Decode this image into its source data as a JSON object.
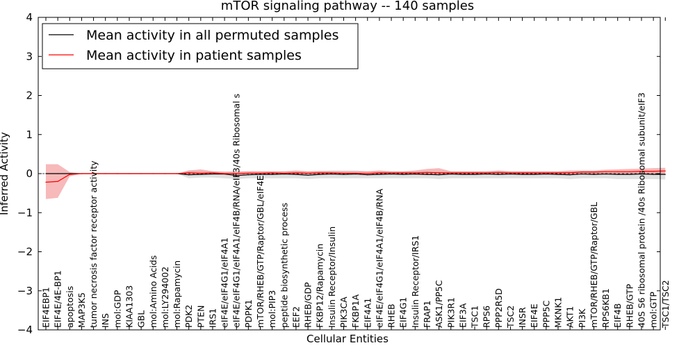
{
  "chart_data": {
    "type": "line",
    "title": "mTOR signaling pathway -- 140 samples",
    "xlabel": "Cellular Entities",
    "ylabel": "Inferred Activity",
    "ylim": [
      -4,
      4
    ],
    "yticks": [
      -4,
      -3,
      -2,
      -1,
      0,
      1,
      2,
      3,
      4
    ],
    "ytick_labels": [
      "−4",
      "−3",
      "−2",
      "−1",
      "0",
      "1",
      "2",
      "3",
      "4"
    ],
    "legend_position": "top-left",
    "categories": [
      "EIF4EBP1",
      "EIF4E/4E-BP1",
      "apoptosis",
      "MAP3K5",
      "tumor necrosis factor receptor activity",
      "INS",
      "mol:GDP",
      "KIAA1303",
      "GBL",
      "mol:Amino Acids",
      "mol:LY294002",
      "mol:Rapamycin",
      "PDK2",
      "PTEN",
      "IRS1",
      "eIF4E/eIF4G1/eIF4A1",
      "eIF4E/eIF4G1/eIF4A1/eIF4B/RNA/eIF3/40s Ribosomal s",
      "PDPK1",
      "mTOR/RHEB/GTP/Raptor/GBL/eIF4E",
      "mol:PIP3",
      "peptide biosynthetic process",
      "EEF2",
      "RHEB/GDP",
      "FKBP12/Rapamycin",
      "Insulin Receptor/Insulin",
      "PIK3CA",
      "FKBP1A",
      "EIF4A1",
      "eIF4E/eIF4G1/eIF4A1/eIF4B/RNA",
      "RHEB",
      "EIF4G1",
      "Insulin Receptor/IRS1",
      "FRAP1",
      "ASK1/PP5C",
      "PIK3R1",
      "EIF3A",
      "TSC1",
      "RPS6",
      "PPP2R5D",
      "TSC2",
      "INSR",
      "EIF4E",
      "PPP5C",
      "MKNK1",
      "AKT1",
      "PI3K",
      "mTOR/RHEB/GTP/Raptor/GBL",
      "RPS6KB1",
      "EIF4B",
      "RHEB/GTP",
      "40S S6 ribosomal protein /40s Ribosomal subunit/eIF3",
      "mol:GTP",
      "TSC1/TSC2"
    ],
    "series": [
      {
        "name": "Mean activity in all permuted samples",
        "color": "#000000",
        "band_color": "#bbbbbb",
        "values": [
          0,
          0,
          0,
          0,
          0,
          0,
          0,
          0,
          0,
          0,
          0,
          0,
          -0.03,
          -0.02,
          -0.01,
          -0.01,
          -0.05,
          -0.03,
          -0.02,
          -0.02,
          -0.01,
          -0.02,
          -0.04,
          -0.02,
          -0.01,
          -0.02,
          -0.01,
          -0.03,
          -0.02,
          -0.01,
          -0.02,
          -0.01,
          -0.02,
          -0.03,
          -0.01,
          -0.02,
          -0.02,
          -0.01,
          -0.02,
          -0.01,
          -0.02,
          -0.02,
          -0.01,
          -0.02,
          -0.03,
          -0.01,
          -0.02,
          -0.01,
          -0.02,
          -0.02,
          -0.01,
          -0.02,
          -0.02
        ],
        "lower": [
          0,
          0,
          0,
          0,
          0,
          0,
          0,
          0,
          0,
          0,
          0,
          0,
          -0.12,
          -0.1,
          -0.1,
          -0.12,
          -0.14,
          -0.12,
          -0.12,
          -0.12,
          -0.12,
          -0.12,
          -0.14,
          -0.12,
          -0.12,
          -0.12,
          -0.12,
          -0.12,
          -0.12,
          -0.12,
          -0.12,
          -0.12,
          -0.12,
          -0.14,
          -0.12,
          -0.12,
          -0.12,
          -0.12,
          -0.12,
          -0.12,
          -0.12,
          -0.12,
          -0.12,
          -0.12,
          -0.14,
          -0.12,
          -0.12,
          -0.12,
          -0.14,
          -0.14,
          -0.14,
          -0.14,
          -0.15
        ],
        "upper": [
          0,
          0,
          0,
          0,
          0,
          0,
          0,
          0,
          0,
          0,
          0,
          0,
          0.08,
          0.06,
          0.06,
          0.06,
          0.06,
          0.06,
          0.06,
          0.06,
          0.06,
          0.06,
          0.06,
          0.06,
          0.08,
          0.08,
          0.08,
          0.06,
          0.06,
          0.06,
          0.06,
          0.06,
          0.06,
          0.06,
          0.06,
          0.06,
          0.06,
          0.06,
          0.06,
          0.06,
          0.06,
          0.06,
          0.06,
          0.06,
          0.06,
          0.06,
          0.06,
          0.06,
          0.06,
          0.06,
          0.06,
          0.06,
          0.07
        ]
      },
      {
        "name": "Mean activity in patient samples",
        "color": "#ff0000",
        "band_color": "#f08080",
        "values": [
          -0.22,
          -0.2,
          -0.02,
          0,
          0,
          0,
          0,
          0,
          0,
          0,
          0,
          0,
          0.02,
          0.01,
          0.02,
          0,
          0,
          0.01,
          0.01,
          0.02,
          0.01,
          0.02,
          0.01,
          0.02,
          0.02,
          0.01,
          0.01,
          0,
          0.02,
          0.02,
          0.02,
          0.02,
          0.03,
          0.02,
          0.02,
          0.02,
          0.02,
          0.02,
          0.03,
          0.02,
          0.02,
          0.02,
          0.02,
          0.02,
          0.02,
          0.04,
          0.04,
          0.05,
          0.05,
          0.05,
          0.06,
          0.06,
          0.07
        ],
        "lower": [
          -0.65,
          -0.62,
          -0.07,
          0,
          0,
          0,
          0,
          0,
          0,
          0,
          0,
          0,
          -0.02,
          -0.03,
          -0.02,
          -0.03,
          -0.04,
          -0.02,
          -0.02,
          -0.02,
          -0.02,
          -0.02,
          -0.02,
          -0.02,
          -0.02,
          -0.02,
          -0.02,
          -0.03,
          -0.02,
          -0.02,
          -0.02,
          -0.03,
          -0.04,
          -0.02,
          -0.02,
          -0.02,
          -0.02,
          -0.02,
          -0.02,
          -0.02,
          -0.02,
          -0.02,
          -0.02,
          -0.02,
          -0.02,
          -0.02,
          -0.02,
          -0.02,
          -0.02,
          -0.02,
          -0.02,
          -0.02,
          -0.02
        ],
        "upper": [
          0.24,
          0.24,
          0.04,
          0,
          0,
          0,
          0,
          0,
          0,
          0,
          0,
          0,
          0.08,
          0.11,
          0.06,
          0.04,
          0.05,
          0.06,
          0.06,
          0.06,
          0.06,
          0.08,
          0.06,
          0.07,
          0.06,
          0.06,
          0.06,
          0.06,
          0.08,
          0.06,
          0.06,
          0.08,
          0.12,
          0.14,
          0.06,
          0.06,
          0.06,
          0.06,
          0.08,
          0.06,
          0.06,
          0.06,
          0.06,
          0.06,
          0.08,
          0.08,
          0.08,
          0.1,
          0.11,
          0.12,
          0.13,
          0.14,
          0.15
        ]
      }
    ]
  }
}
